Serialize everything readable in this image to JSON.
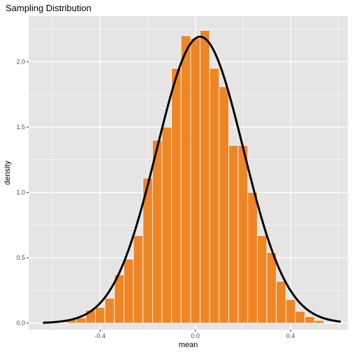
{
  "chart_data": {
    "type": "bar",
    "title": "Sampling Distribution",
    "xlabel": "mean",
    "ylabel": "density",
    "xlim": [
      -0.7,
      0.64
    ],
    "ylim": [
      -0.05,
      2.35
    ],
    "x_ticks": [
      -0.4,
      0.0,
      0.4
    ],
    "x_tick_labels": [
      "-0.4",
      "0.0",
      "0.4"
    ],
    "y_ticks": [
      0.0,
      0.5,
      1.0,
      1.5,
      2.0
    ],
    "y_tick_labels": [
      "0.0",
      "0.5",
      "1.0",
      "1.5",
      "2.0"
    ],
    "grid": true,
    "bin_width": 0.04,
    "bins_x": [
      -0.52,
      -0.48,
      -0.44,
      -0.4,
      -0.36,
      -0.32,
      -0.28,
      -0.24,
      -0.2,
      -0.16,
      -0.12,
      -0.08,
      -0.04,
      0.0,
      0.04,
      0.08,
      0.12,
      0.16,
      0.2,
      0.24,
      0.28,
      0.32,
      0.36,
      0.4,
      0.44,
      0.48,
      0.52
    ],
    "values": [
      0.03,
      0.04,
      0.1,
      0.12,
      0.19,
      0.37,
      0.49,
      0.67,
      1.11,
      1.4,
      1.5,
      1.95,
      2.2,
      2.18,
      2.24,
      1.95,
      1.81,
      1.36,
      1.36,
      1.0,
      0.67,
      0.54,
      0.32,
      0.18,
      0.09,
      0.05,
      0.02
    ],
    "curve": {
      "type": "normal-density",
      "mean": 0.02,
      "sd": 0.182,
      "x_range": [
        -0.64,
        0.61
      ]
    },
    "bar_color": "#ee8626",
    "bar_outline": "#ffffff",
    "curve_color": "#000000",
    "panel_background": "#e5e5e5",
    "grid_color": "#ffffff"
  }
}
